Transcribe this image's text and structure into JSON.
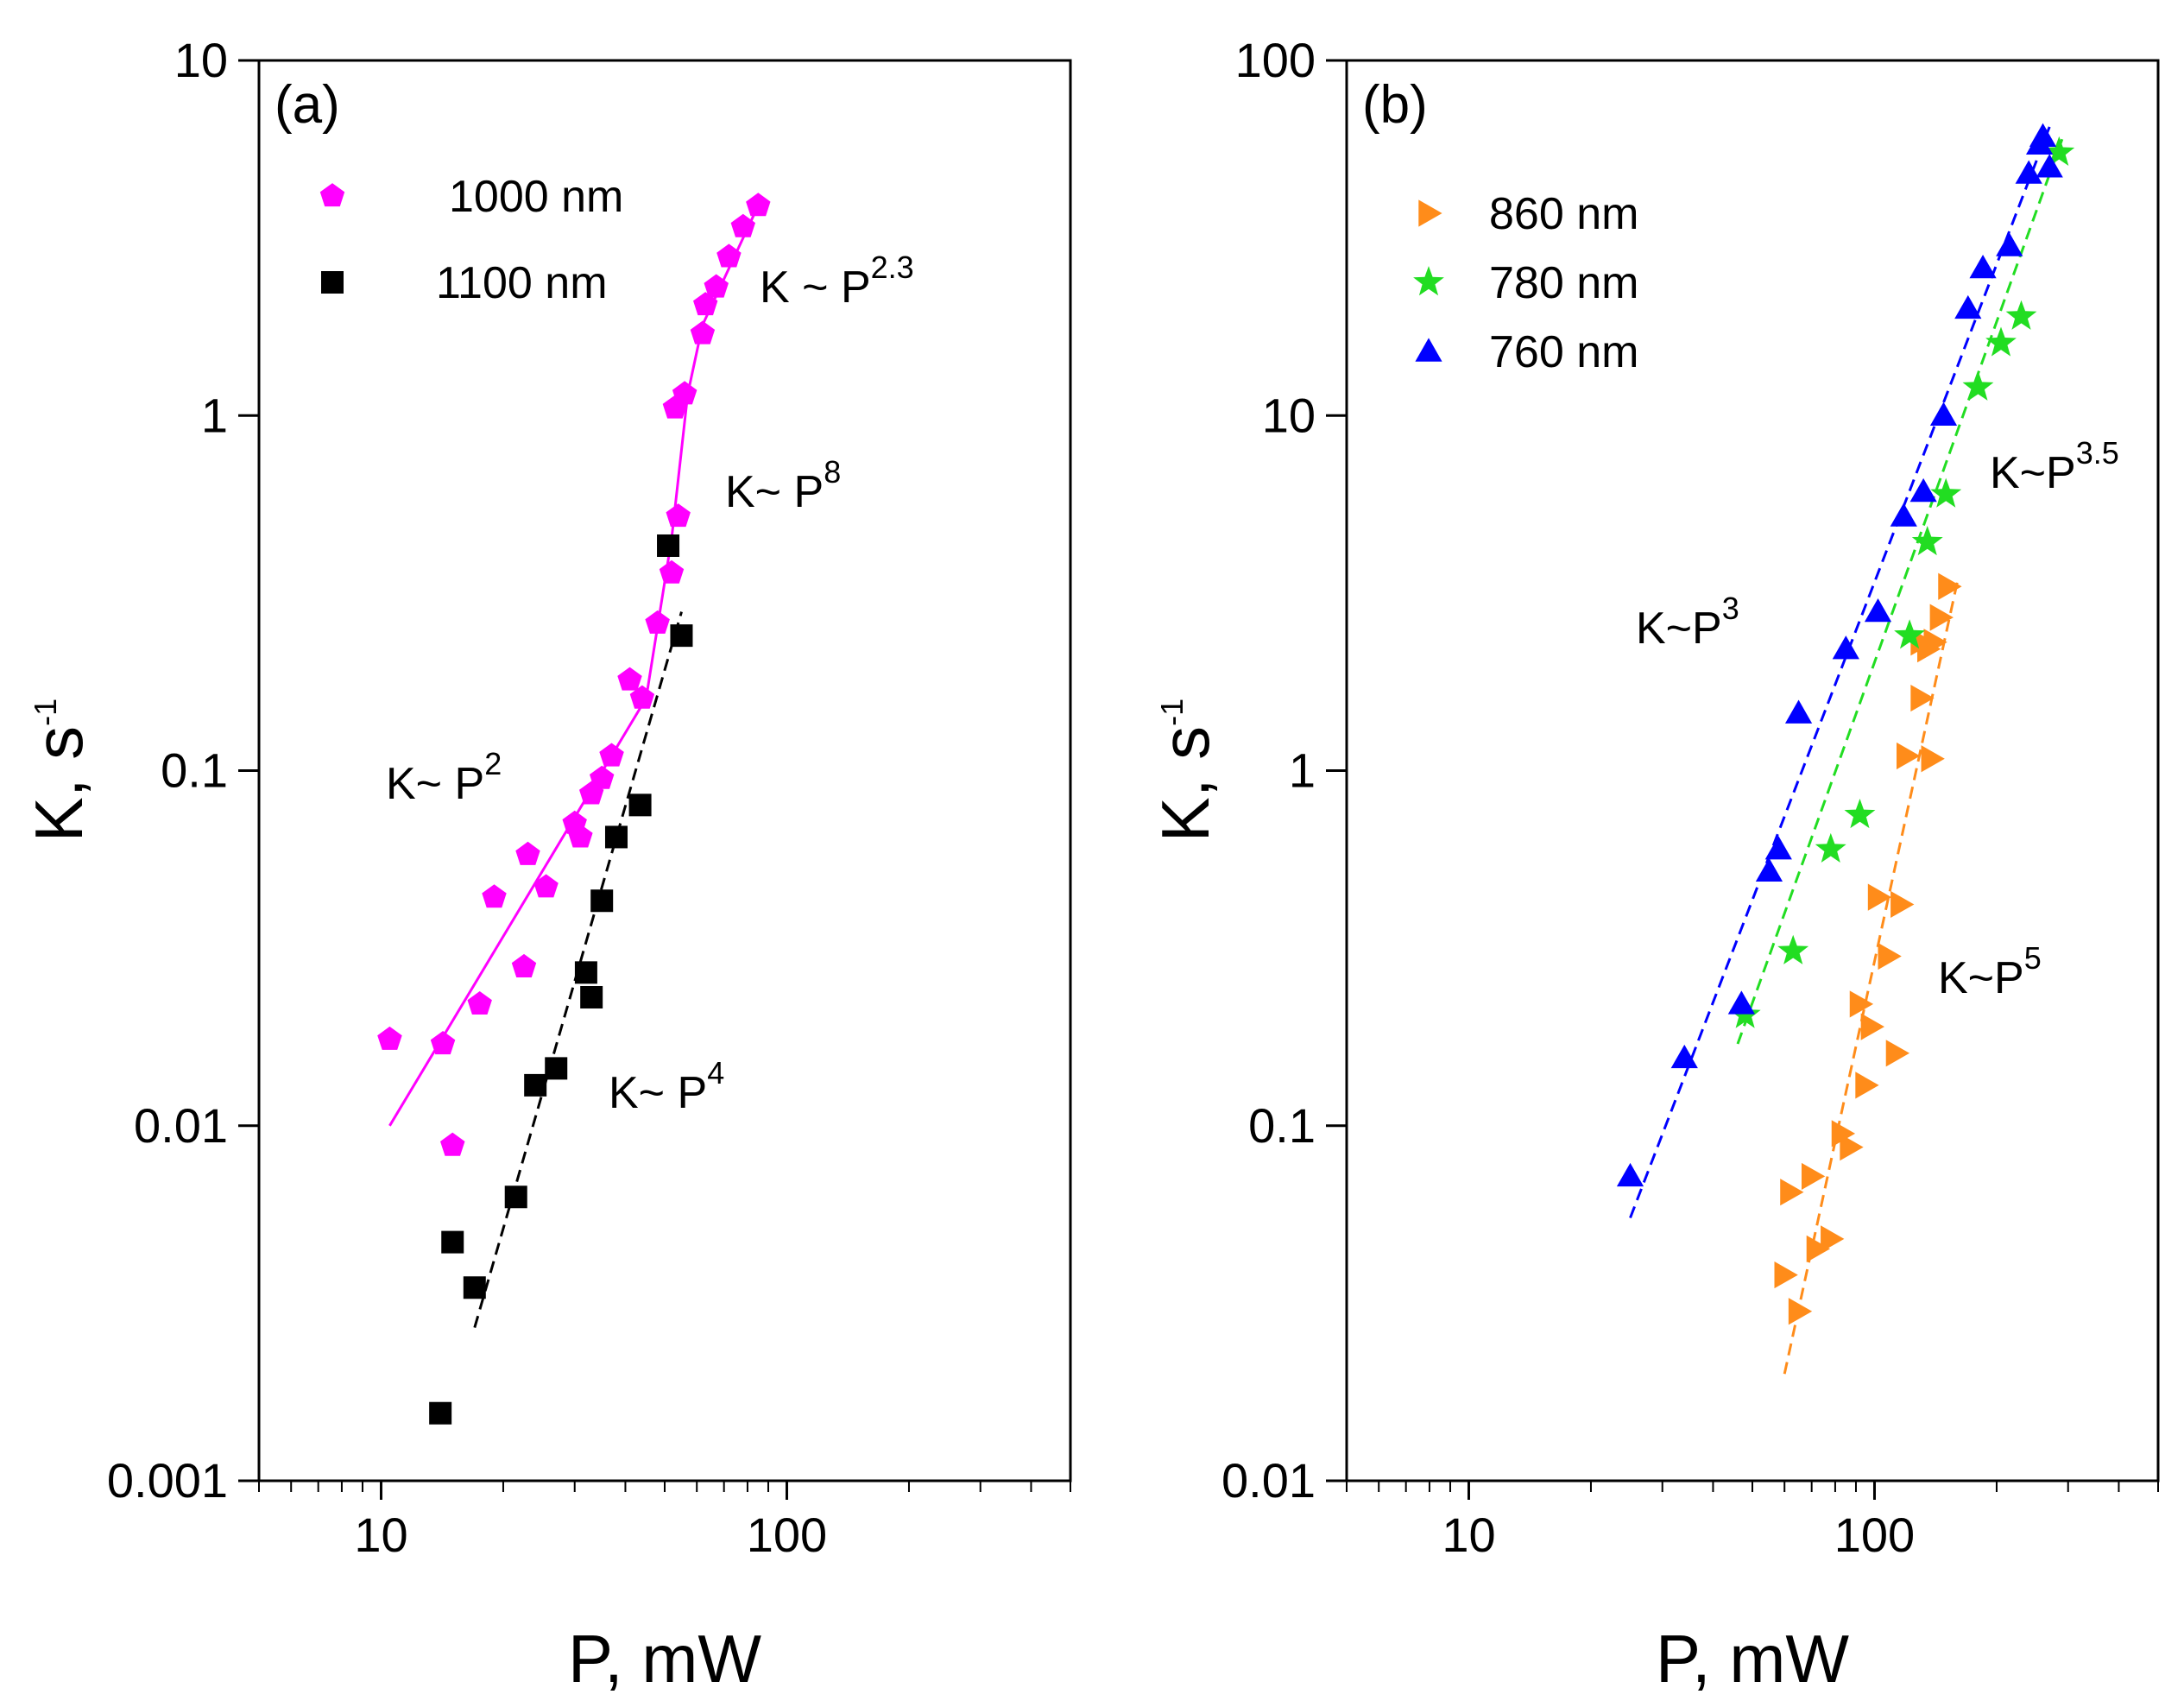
{
  "chart_data": [
    {
      "type": "scatter",
      "panel_label": "(a)",
      "xlabel": "P, mW",
      "ylabel_base": "K, s",
      "ylabel_sup": "-1",
      "xscale": "log",
      "yscale": "log",
      "xlim": [
        5,
        500
      ],
      "ylim": [
        0.001,
        10
      ],
      "xticks": [
        10,
        100
      ],
      "xtick_labels": [
        "10",
        "100"
      ],
      "yticks": [
        0.001,
        0.01,
        0.1,
        1,
        10
      ],
      "ytick_labels": [
        "0.001",
        "0.01",
        "0.1",
        "1",
        "10"
      ],
      "legend_position": "top-left",
      "series": [
        {
          "name": "1000 nm",
          "marker": "pentagon",
          "color": "#ff00ff",
          "points": [
            [
              10.5,
              0.0175
            ],
            [
              14.2,
              0.017
            ],
            [
              15.0,
              0.0088
            ],
            [
              17.5,
              0.022
            ],
            [
              19.0,
              0.044
            ],
            [
              22.5,
              0.028
            ],
            [
              23.0,
              0.058
            ],
            [
              25.5,
              0.047
            ],
            [
              30.0,
              0.071
            ],
            [
              31.0,
              0.065
            ],
            [
              33.0,
              0.086
            ],
            [
              35.0,
              0.095
            ],
            [
              37.0,
              0.11
            ],
            [
              41.0,
              0.18
            ],
            [
              44.0,
              0.16
            ],
            [
              48.0,
              0.26
            ],
            [
              52.0,
              0.36
            ],
            [
              54.0,
              0.52
            ],
            [
              53.0,
              1.05
            ],
            [
              56.0,
              1.15
            ],
            [
              62.0,
              1.7
            ],
            [
              63.0,
              2.05
            ],
            [
              67.0,
              2.3
            ],
            [
              72.0,
              2.8
            ],
            [
              78.0,
              3.4
            ],
            [
              85.0,
              3.9
            ]
          ]
        },
        {
          "name": "1100 nm",
          "marker": "square",
          "color": "#000000",
          "points": [
            [
              14.0,
              0.00155
            ],
            [
              15.0,
              0.0047
            ],
            [
              17.0,
              0.0035
            ],
            [
              21.5,
              0.0063
            ],
            [
              24.0,
              0.013
            ],
            [
              27.0,
              0.0145
            ],
            [
              32.0,
              0.027
            ],
            [
              33.0,
              0.023
            ],
            [
              35.0,
              0.043
            ],
            [
              38.0,
              0.065
            ],
            [
              43.5,
              0.08
            ],
            [
              51.0,
              0.43
            ],
            [
              55.0,
              0.24
            ]
          ]
        }
      ],
      "fit_lines": [
        {
          "series": "1000 nm",
          "color": "#ff00ff",
          "style": "solid",
          "points": [
            [
              10.5,
              0.01
            ],
            [
              45,
              0.16
            ],
            [
              52,
              0.45
            ],
            [
              57,
              1.15
            ],
            [
              62,
              1.8
            ],
            [
              85,
              3.9
            ]
          ]
        },
        {
          "series": "1100 nm",
          "color": "#000000",
          "style": "dashed",
          "points": [
            [
              17,
              0.0027
            ],
            [
              55,
              0.28
            ]
          ]
        }
      ],
      "annotations": [
        {
          "base": "K ~ P",
          "sup": "2.3"
        },
        {
          "base": "K~ P",
          "sup": "8"
        },
        {
          "base": "K~ P",
          "sup": "2"
        },
        {
          "base": "K~ P",
          "sup": "4"
        }
      ]
    },
    {
      "type": "scatter",
      "panel_label": "(b)",
      "xlabel": "P, mW",
      "ylabel_base": "K, s",
      "ylabel_sup": "-1",
      "xscale": "log",
      "yscale": "log",
      "xlim": [
        5,
        500
      ],
      "ylim": [
        0.01,
        100
      ],
      "xticks": [
        10,
        100
      ],
      "xtick_labels": [
        "10",
        "100"
      ],
      "yticks": [
        0.01,
        0.1,
        1,
        10,
        100
      ],
      "ytick_labels": [
        "0.01",
        "0.1",
        "1",
        "10",
        "100"
      ],
      "legend_position": "top-left",
      "series": [
        {
          "name": "860 nm",
          "marker": "triangle-right",
          "color": "#ff8c1a",
          "points": [
            [
              60,
              0.038
            ],
            [
              62,
              0.065
            ],
            [
              65,
              0.03
            ],
            [
              70,
              0.072
            ],
            [
              72,
              0.045
            ],
            [
              78,
              0.048
            ],
            [
              83,
              0.095
            ],
            [
              87,
              0.087
            ],
            [
              92,
              0.22
            ],
            [
              95,
              0.13
            ],
            [
              98,
              0.19
            ],
            [
              102,
              0.44
            ],
            [
              108,
              0.3
            ],
            [
              113,
              0.16
            ],
            [
              116,
              0.42
            ],
            [
              120,
              1.1
            ],
            [
              130,
              1.6
            ],
            [
              135,
              2.2
            ],
            [
              138,
              1.08
            ],
            [
              140,
              2.3
            ],
            [
              145,
              2.7
            ],
            [
              152,
              3.3
            ],
            [
              130,
              2.3
            ]
          ]
        },
        {
          "name": "780 nm",
          "marker": "star",
          "color": "#22dd22",
          "points": [
            [
              48,
              0.205
            ],
            [
              63,
              0.31
            ],
            [
              78,
              0.6
            ],
            [
              92,
              0.75
            ],
            [
              122,
              2.4
            ],
            [
              135,
              4.4
            ],
            [
              150,
              6.0
            ],
            [
              180,
              12
            ],
            [
              205,
              16
            ],
            [
              230,
              19
            ],
            [
              285,
              55
            ]
          ]
        },
        {
          "name": "760 nm",
          "marker": "triangle-up",
          "color": "#0000ff",
          "points": [
            [
              25,
              0.072
            ],
            [
              34,
              0.155
            ],
            [
              47,
              0.22
            ],
            [
              55,
              0.52
            ],
            [
              58,
              0.6
            ],
            [
              65,
              1.45
            ],
            [
              85,
              2.2
            ],
            [
              102,
              2.8
            ],
            [
              118,
              5.2
            ],
            [
              132,
              6.1
            ],
            [
              148,
              10
            ],
            [
              170,
              20
            ],
            [
              185,
              26
            ],
            [
              215,
              30
            ],
            [
              240,
              48
            ],
            [
              260,
              61
            ],
            [
              270,
              50
            ],
            [
              255,
              58
            ]
          ]
        }
      ],
      "fit_lines": [
        {
          "series": "760 nm",
          "color": "#0000ff",
          "style": "dashed",
          "points": [
            [
              25,
              0.055
            ],
            [
              270,
              65
            ]
          ]
        },
        {
          "series": "780 nm",
          "color": "#22dd22",
          "style": "dashed",
          "points": [
            [
              46,
              0.17
            ],
            [
              290,
              60
            ]
          ]
        },
        {
          "series": "860 nm",
          "color": "#ff8c1a",
          "style": "dashed",
          "points": [
            [
              60,
              0.02
            ],
            [
              160,
              3.4
            ]
          ]
        }
      ],
      "annotations": [
        {
          "base": "K~P",
          "sup": "3.5"
        },
        {
          "base": "K~P",
          "sup": "3"
        },
        {
          "base": "K~P",
          "sup": "5"
        }
      ]
    }
  ]
}
